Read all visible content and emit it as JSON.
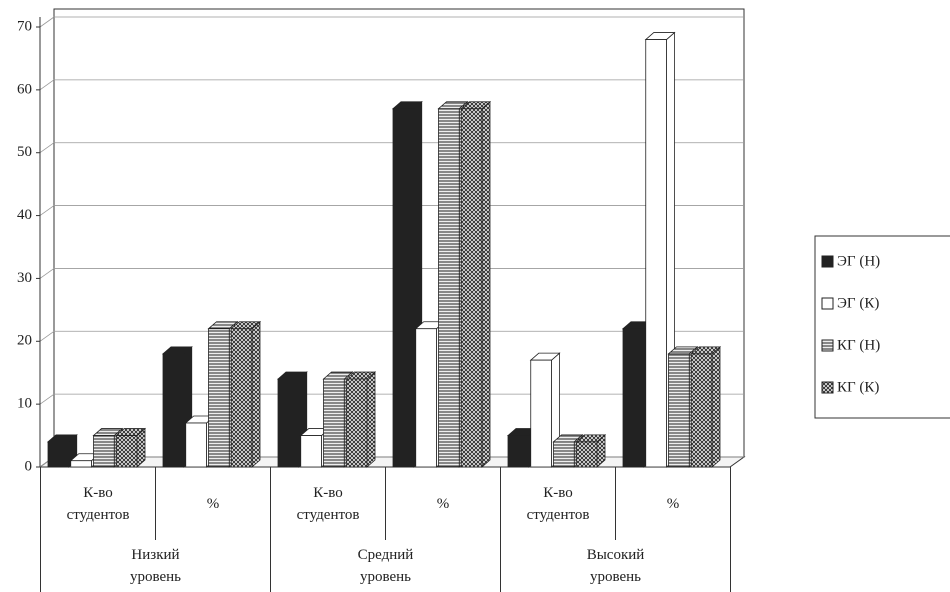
{
  "chart_data": {
    "type": "bar3d",
    "categories": [
      "К-во студентов",
      "%",
      "К-во студентов",
      "%",
      "К-во студентов",
      "%"
    ],
    "groups": [
      "Низкий уровень",
      "Средний уровень",
      "Высокий уровень"
    ],
    "series": [
      {
        "name": "ЭГ (Н)",
        "color": "#222222",
        "pattern": "solid",
        "values": [
          4,
          18,
          14,
          57,
          5,
          22
        ]
      },
      {
        "name": "ЭГ (К)",
        "color": "#ffffff",
        "pattern": "none",
        "values": [
          1,
          7,
          5,
          22,
          17,
          68
        ]
      },
      {
        "name": "КГ (Н)",
        "color": "#dddddd",
        "pattern": "horizontal",
        "values": [
          5,
          22,
          14,
          57,
          4,
          18
        ]
      },
      {
        "name": "КГ (К)",
        "color": "#dddddd",
        "pattern": "cross",
        "values": [
          5,
          22,
          14,
          57,
          4,
          18
        ]
      }
    ],
    "ylim": [
      0,
      70
    ],
    "yticks": [
      0,
      10,
      20,
      30,
      40,
      50,
      60,
      70
    ],
    "grid": true,
    "legend": "right"
  }
}
